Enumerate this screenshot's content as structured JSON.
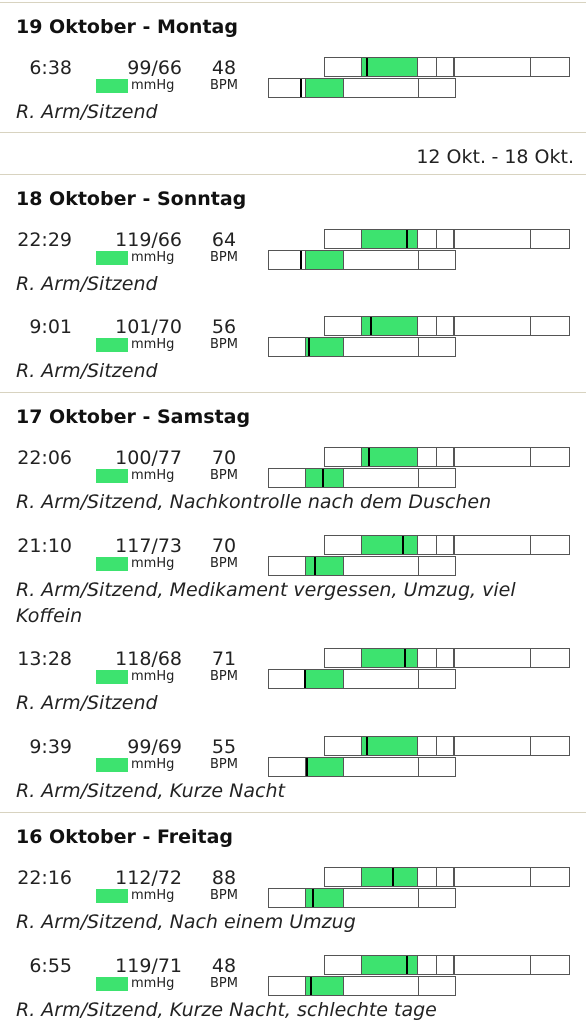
{
  "week_range": {
    "start": "12 Okt.",
    "end": "- 18 Okt."
  },
  "units": {
    "bp": "mmHg",
    "pulse": "BPM"
  },
  "colors": {
    "normal_zone": "#3de36f",
    "divider": "#d8d3c0",
    "cell_border": "#555555",
    "marker": "#000000"
  },
  "days": [
    {
      "title": "19 Oktober - Montag",
      "entries": [
        {
          "time": "6:38",
          "bp": "99/66",
          "pulse": "48",
          "note": "R. Arm/Sitzend",
          "sys": 99,
          "dia": 66
        }
      ]
    },
    {
      "title": "18 Oktober - Sonntag",
      "entries": [
        {
          "time": "22:29",
          "bp": "119/66",
          "pulse": "64",
          "note": "R. Arm/Sitzend",
          "sys": 119,
          "dia": 66
        },
        {
          "time": "9:01",
          "bp": "101/70",
          "pulse": "56",
          "note": "R. Arm/Sitzend",
          "sys": 101,
          "dia": 70
        }
      ]
    },
    {
      "title": "17 Oktober - Samstag",
      "entries": [
        {
          "time": "22:06",
          "bp": "100/77",
          "pulse": "70",
          "note": "R. Arm/Sitzend, Nachkontrolle nach dem Duschen",
          "sys": 100,
          "dia": 77
        },
        {
          "time": "21:10",
          "bp": "117/73",
          "pulse": "70",
          "note": "R. Arm/Sitzend, Medikament vergessen, Umzug, viel Koffein",
          "sys": 117,
          "dia": 73
        },
        {
          "time": "13:28",
          "bp": "118/68",
          "pulse": "71",
          "note": "R. Arm/Sitzend",
          "sys": 118,
          "dia": 68
        },
        {
          "time": "9:39",
          "bp": "99/69",
          "pulse": "55",
          "note": "R. Arm/Sitzend, Kurze Nacht",
          "sys": 99,
          "dia": 69
        }
      ]
    },
    {
      "title": "16 Oktober - Freitag",
      "entries": [
        {
          "time": "22:16",
          "bp": "112/72",
          "pulse": "88",
          "note": "R. Arm/Sitzend, Nach einem Umzug",
          "sys": 112,
          "dia": 72
        },
        {
          "time": "6:55",
          "bp": "119/71",
          "pulse": "48",
          "note": "R. Arm/Sitzend, Kurze Nacht, schlechte tage",
          "sys": 119,
          "dia": 71
        }
      ]
    }
  ]
}
